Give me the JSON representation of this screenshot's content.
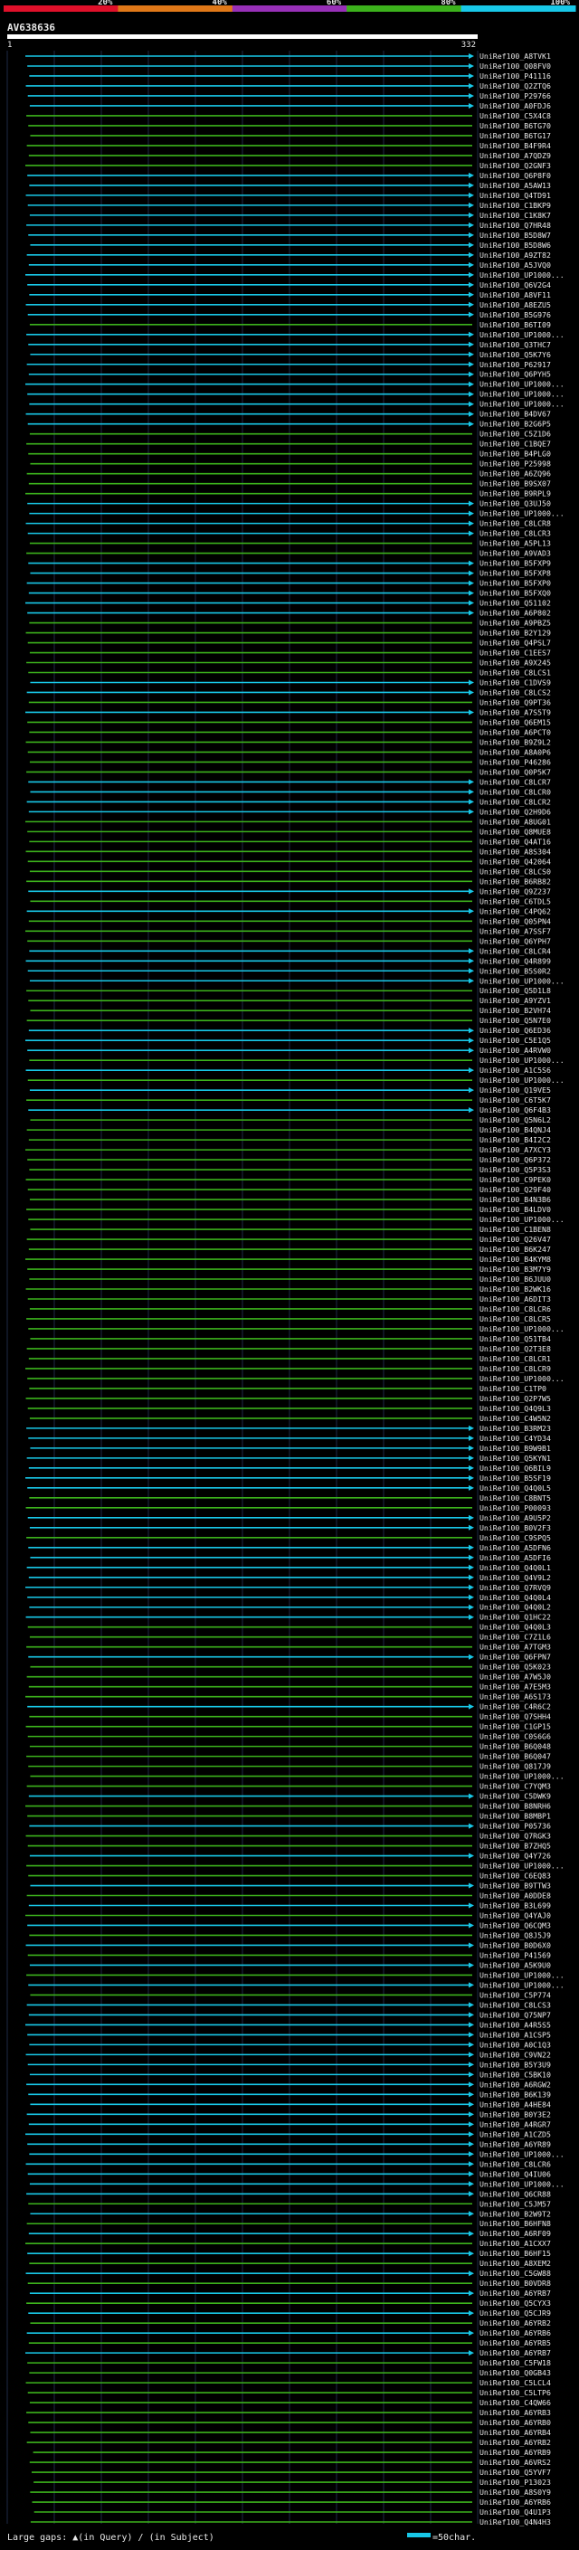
{
  "chart_data": {
    "type": "alignment-overview",
    "title": "AV638636",
    "query_range": [
      "1",
      "332"
    ],
    "identity_scale": {
      "labels": [
        "20%",
        "40%",
        "60%",
        "80%",
        "100%"
      ],
      "colors": [
        "#e0102a",
        "#e07818",
        "#9830b8",
        "#3cb21c",
        "#18c8e8"
      ]
    },
    "legend": {
      "gap_text": "Large gaps: ",
      "gap_query": "(in Query)",
      "gap_sep": " / ",
      "gap_subject": "(in Subject)",
      "scale_text": " =50char."
    },
    "hits": [
      "UniRef100_A8TVK1",
      "UniRef100_Q08FV0",
      "UniRef100_P41116",
      "UniRef100_Q2ZTQ6",
      "UniRef100_P29766",
      "UniRef100_A0FDJ6",
      "UniRef100_C5X4C8",
      "UniRef100_B6TG70",
      "UniRef100_B6TG17",
      "UniRef100_B4F9R4",
      "UniRef100_A7QDZ9",
      "UniRef100_Q2GNF3",
      "UniRef100_Q6P8F0",
      "UniRef100_A5AW13",
      "UniRef100_Q4TD91",
      "UniRef100_C1BKP9",
      "UniRef100_C1K8K7",
      "UniRef100_Q7HR48",
      "UniRef100_B5D8W7",
      "UniRef100_B5D8W6",
      "UniRef100_A9ZT82",
      "UniRef100_A5JVQ0",
      "UniRef100_UP1000...",
      "UniRef100_Q6V2G4",
      "UniRef100_A8VF11",
      "UniRef100_A8EZU5",
      "UniRef100_B5G976",
      "UniRef100_B6TI09",
      "UniRef100_UP1000...",
      "UniRef100_Q3THC7",
      "UniRef100_Q5K7Y6",
      "UniRef100_P62917",
      "UniRef100_Q6PYH5",
      "UniRef100_UP1000...",
      "UniRef100_UP1000...",
      "UniRef100_UP1000...",
      "UniRef100_B4DV67",
      "UniRef100_B2G6P5",
      "UniRef100_C5Z1D6",
      "UniRef100_C1BQE7",
      "UniRef100_B4PLG0",
      "UniRef100_P25998",
      "UniRef100_A6ZQ96",
      "UniRef100_B9SX07",
      "UniRef100_B9RPL9",
      "UniRef100_Q3UJ50",
      "UniRef100_UP1000...",
      "UniRef100_C8LCR8",
      "UniRef100_C8LCR3",
      "UniRef100_A5PL13",
      "UniRef100_A9VAD3",
      "UniRef100_B5FXP9",
      "UniRef100_B5FXP8",
      "UniRef100_B5FXP0",
      "UniRef100_B5FXQ0",
      "UniRef100_Q51102",
      "UniRef100_A6P802",
      "UniRef100_A9PBZ5",
      "UniRef100_B2Y129",
      "UniRef100_Q4PSL7",
      "UniRef100_C1EES7",
      "UniRef100_A9X245",
      "UniRef100_C8LCS1",
      "UniRef100_C1DVS9",
      "UniRef100_C8LCS2",
      "UniRef100_Q9PT36",
      "UniRef100_A7S5T9",
      "UniRef100_Q6EM15",
      "UniRef100_A6PCT0",
      "UniRef100_B9Z9L2",
      "UniRef100_A8A0P6",
      "UniRef100_P46286",
      "UniRef100_Q0P5K7",
      "UniRef100_C8LCR7",
      "UniRef100_C8LCR0",
      "UniRef100_C8LCR2",
      "UniRef100_Q2H9D6",
      "UniRef100_A8UG01",
      "UniRef100_Q8MUE8",
      "UniRef100_Q4AT16",
      "UniRef100_A8S304",
      "UniRef100_Q42064",
      "UniRef100_C8LCS0",
      "UniRef100_B6RB82",
      "UniRef100_Q9Z237",
      "UniRef100_C6TDL5",
      "UniRef100_C4PQ62",
      "UniRef100_Q05PN4",
      "UniRef100_A7SSF7",
      "UniRef100_Q6YPH7",
      "UniRef100_C8LCR4",
      "UniRef100_Q4R899",
      "UniRef100_B5S0R2",
      "UniRef100_UP1000...",
      "UniRef100_Q5D1L8",
      "UniRef100_A9YZV1",
      "UniRef100_B2VH74",
      "UniRef100_Q5N7E0",
      "UniRef100_Q6ED36",
      "UniRef100_C5E1Q5",
      "UniRef100_A4RVW0",
      "UniRef100_UP1000...",
      "UniRef100_A1C5S6",
      "UniRef100_UP1000...",
      "UniRef100_Q19VE5",
      "UniRef100_C6T5K7",
      "UniRef100_Q6F4B3",
      "UniRef100_Q5N6L2",
      "UniRef100_B4QNJ4",
      "UniRef100_B4I2C2",
      "UniRef100_A7XCY3",
      "UniRef100_Q6P372",
      "UniRef100_Q5P3S3",
      "UniRef100_C9PEK0",
      "UniRef100_Q29F40",
      "UniRef100_B4N3B6",
      "UniRef100_B4LDV0",
      "UniRef100_UP1000...",
      "UniRef100_C1BEN8",
      "UniRef100_Q26V47",
      "UniRef100_B6K247",
      "UniRef100_B4KYM8",
      "UniRef100_B3M7Y9",
      "UniRef100_B6JUU0",
      "UniRef100_B2WK16",
      "UniRef100_A6DIT3",
      "UniRef100_C8LCR6",
      "UniRef100_C8LCR5",
      "UniRef100_UP1000...",
      "UniRef100_Q51TB4",
      "UniRef100_Q2T3E8",
      "UniRef100_C8LCR1",
      "UniRef100_C8LCR9",
      "UniRef100_UP1000...",
      "UniRef100_C1TP0",
      "UniRef100_Q2P7W5",
      "UniRef100_Q4Q9L3",
      "UniRef100_C4W5N2",
      "UniRef100_B3RM23",
      "UniRef100_C4YD34",
      "UniRef100_B9W9B1",
      "UniRef100_Q5KYN1",
      "UniRef100_Q6BIL9",
      "UniRef100_B5SF19",
      "UniRef100_Q4Q0L5",
      "UniRef100_C8BNT5",
      "UniRef100_P00093",
      "UniRef100_A9U5P2",
      "UniRef100_B0V2F3",
      "UniRef100_C9SPQ5",
      "UniRef100_A5DFN6",
      "UniRef100_A5DFI6",
      "UniRef100_Q4Q0L1",
      "UniRef100_Q4V9L2",
      "UniRef100_Q7RVQ9",
      "UniRef100_Q4Q0L4",
      "UniRef100_Q4Q0L2",
      "UniRef100_Q1HC22",
      "UniRef100_Q4Q0L3",
      "UniRef100_C7Z1L6",
      "UniRef100_A7TGM3",
      "UniRef100_Q6FPN7",
      "UniRef100_Q5K023",
      "UniRef100_A7W5J0",
      "UniRef100_A7E5M3",
      "UniRef100_A6S173",
      "UniRef100_C4R6C2",
      "UniRef100_Q7SHH4",
      "UniRef100_C1GP15",
      "UniRef100_C0S6G6",
      "UniRef100_B6Q048",
      "UniRef100_B6Q047",
      "UniRef100_Q817J9",
      "UniRef100_UP1000...",
      "UniRef100_C7YQM3",
      "UniRef100_C5DWK9",
      "UniRef100_B8NRH6",
      "UniRef100_B8MBP1",
      "UniRef100_P05736",
      "UniRef100_Q7RGK3",
      "UniRef100_B7ZHQ5",
      "UniRef100_Q4Y726",
      "UniRef100_UP1000...",
      "UniRef100_C6EQ83",
      "UniRef100_B9TTW3",
      "UniRef100_A0DDE8",
      "UniRef100_B3L699",
      "UniRef100_Q4YAJ0",
      "UniRef100_Q6CQM3",
      "UniRef100_Q8J5J9",
      "UniRef100_B0D6X0",
      "UniRef100_P41569",
      "UniRef100_A5K9U0",
      "UniRef100_UP1000...",
      "UniRef100_UP1000...",
      "UniRef100_C5P774",
      "UniRef100_C8LCS3",
      "UniRef100_Q75NP7",
      "UniRef100_A4R5S5",
      "UniRef100_A1CSP5",
      "UniRef100_A0C1Q3",
      "UniRef100_C9VN22",
      "UniRef100_B5Y3U9",
      "UniRef100_C5BK10",
      "UniRef100_A6RGW2",
      "UniRef100_B6K139",
      "UniRef100_A4HE84",
      "UniRef100_B0Y3E2",
      "UniRef100_A4RGR7",
      "UniRef100_A1CZD5",
      "UniRef100_A6YR89",
      "UniRef100_UP1000...",
      "UniRef100_C8LCR6",
      "UniRef100_Q4IU06",
      "UniRef100_UP1000...",
      "UniRef100_Q6CR88",
      "UniRef100_C5JM57",
      "UniRef100_B2W9T2",
      "UniRef100_B6HFN8",
      "UniRef100_A6RF09",
      "UniRef100_A1CXX7",
      "UniRef100_B6HF15",
      "UniRef100_A8XEM2",
      "UniRef100_C5GW88",
      "UniRef100_B0VDR8",
      "UniRef100_A6YRB7",
      "UniRef100_Q5CYX3",
      "UniRef100_Q5CJR9",
      "UniRef100_A6YRB2",
      "UniRef100_A6YRB6",
      "UniRef100_A6YRB5",
      "UniRef100_A6YRB7",
      "UniRef100_C5FW18",
      "UniRef100_Q0GB43",
      "UniRef100_C5LCL4",
      "UniRef100_C5LTP6",
      "UniRef100_C4QW66",
      "UniRef100_A6YRB3",
      "UniRef100_A6YRB0",
      "UniRef100_A6YRB4",
      "UniRef100_A6YRB2",
      "UniRef100_A6YRB9",
      "UniRef100_A6VRS2",
      "UniRef100_Q5YVF7",
      "UniRef100_P13023",
      "UniRef100_A8S0Y9",
      "UniRef100_A6YRB6",
      "UniRef100_Q4U1P3",
      "UniRef100_Q4N4H3"
    ]
  }
}
